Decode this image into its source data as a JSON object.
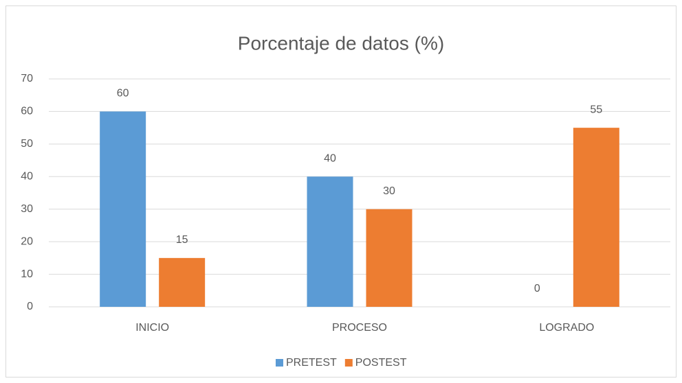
{
  "chart_data": {
    "type": "bar",
    "title": "Porcentaje de datos (%)",
    "categories": [
      "INICIO",
      "PROCESO",
      "LOGRADO"
    ],
    "series": [
      {
        "name": "PRETEST",
        "color": "#5b9bd5",
        "values": [
          60,
          40,
          0
        ]
      },
      {
        "name": "POSTEST",
        "color": "#ed7d31",
        "values": [
          15,
          30,
          55
        ]
      }
    ],
    "ylim": [
      0,
      70
    ],
    "yticks": [
      0,
      10,
      20,
      30,
      40,
      50,
      60,
      70
    ],
    "grid": true,
    "legend": "bottom"
  }
}
